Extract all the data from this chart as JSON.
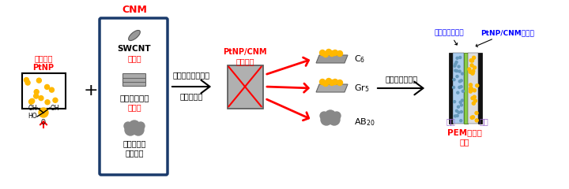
{
  "bg_color": "#ffffff",
  "title": "",
  "colors": {
    "red": "#ff0000",
    "blue": "#0000ff",
    "gold": "#FFB800",
    "dark_blue_border": "#1a3a6b",
    "gray": "#aaaaaa",
    "dark_gray": "#777777",
    "light_gray": "#cccccc",
    "black": "#000000",
    "green": "#00aa00",
    "light_blue": "#aaddff",
    "purple": "#9966cc"
  },
  "labels": {
    "cnm": "CNM",
    "swcnt": "SWCNT",
    "matawa1": "または",
    "graphite": "グラファイト",
    "matawa2": "または",
    "acetylene": "アセチレン\nブラック",
    "water_pt": "水分散性\nPtNP",
    "process1": "非共有結合機能化",
    "process2": "超音波処理",
    "dispersion": "PtNP/CNM\n水分散液",
    "spray": "スプレーコート",
    "pem": "PEM水電解\n電極",
    "anode": "陽極",
    "cathode": "陰極",
    "iridium": "酸化イリジウム",
    "composite": "PtNP/CNM複合体",
    "c6": "C$_6$",
    "gr5": "Gr$_5$",
    "ab20": "AB$_{20}$"
  }
}
